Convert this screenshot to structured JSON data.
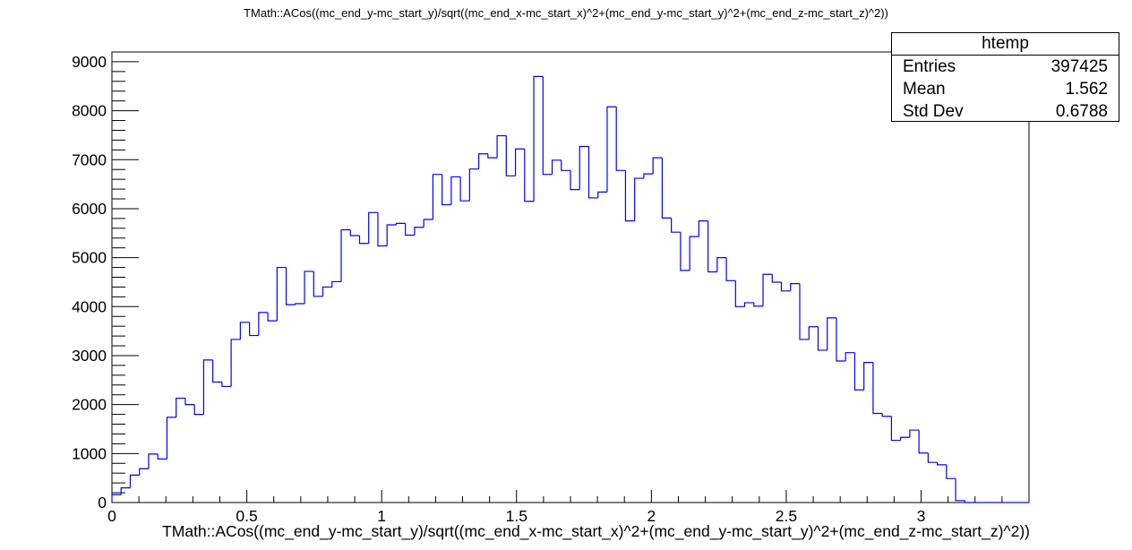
{
  "title": "TMath::ACos((mc_end_y-mc_start_y)/sqrt((mc_end_x-mc_start_x)^2+(mc_end_y-mc_start_y)^2+(mc_end_z-mc_start_z)^2))",
  "stats": {
    "name": "htemp",
    "rows": [
      {
        "label": "Entries",
        "value": "397425"
      },
      {
        "label": "Mean",
        "value": "1.562"
      },
      {
        "label": "Std Dev",
        "value": "0.6788"
      }
    ]
  },
  "colors": {
    "histogram_line": "#0000ff",
    "axis": "#000000",
    "background": "#ffffff"
  },
  "chart_data": {
    "type": "bar",
    "style": "step-histogram",
    "title": "TMath::ACos((mc_end_y-mc_start_y)/sqrt((mc_end_x-mc_start_x)^2+(mc_end_y-mc_start_y)^2+(mc_end_z-mc_start_z)^2))",
    "xlabel": "TMath::ACos((mc_end_y-mc_start_y)/sqrt((mc_end_x-mc_start_x)^2+(mc_end_y-mc_start_y)^2+(mc_end_z-mc_start_z)^2))",
    "ylabel": "",
    "xlim": [
      0,
      3.4
    ],
    "ylim": [
      0,
      9200
    ],
    "bin_width": 0.034,
    "x_ticks": [
      "0",
      "0.5",
      "1",
      "1.5",
      "2",
      "2.5",
      "3"
    ],
    "y_ticks": [
      "0",
      "1000",
      "2000",
      "3000",
      "4000",
      "5000",
      "6000",
      "7000",
      "8000",
      "9000"
    ],
    "values": [
      160,
      300,
      560,
      690,
      990,
      890,
      1740,
      2130,
      2000,
      1800,
      2910,
      2460,
      2370,
      3330,
      3680,
      3410,
      3880,
      3710,
      4800,
      4040,
      4060,
      4720,
      4210,
      4400,
      4510,
      5570,
      5450,
      5290,
      5920,
      5240,
      5670,
      5700,
      5460,
      5620,
      5780,
      6700,
      6080,
      6650,
      6160,
      6810,
      7120,
      7040,
      7490,
      6670,
      7220,
      6150,
      8700,
      6700,
      6990,
      6780,
      6390,
      7270,
      6220,
      6340,
      8080,
      6780,
      5750,
      6620,
      6710,
      7040,
      5810,
      5520,
      4740,
      5430,
      5750,
      4710,
      5000,
      4530,
      4000,
      4080,
      4010,
      4660,
      4500,
      4320,
      4470,
      3330,
      3590,
      3110,
      3770,
      2890,
      3060,
      2300,
      2860,
      1820,
      1760,
      1270,
      1330,
      1480,
      1010,
      820,
      770,
      490,
      40,
      0,
      0,
      0,
      0,
      0,
      0,
      0
    ]
  }
}
